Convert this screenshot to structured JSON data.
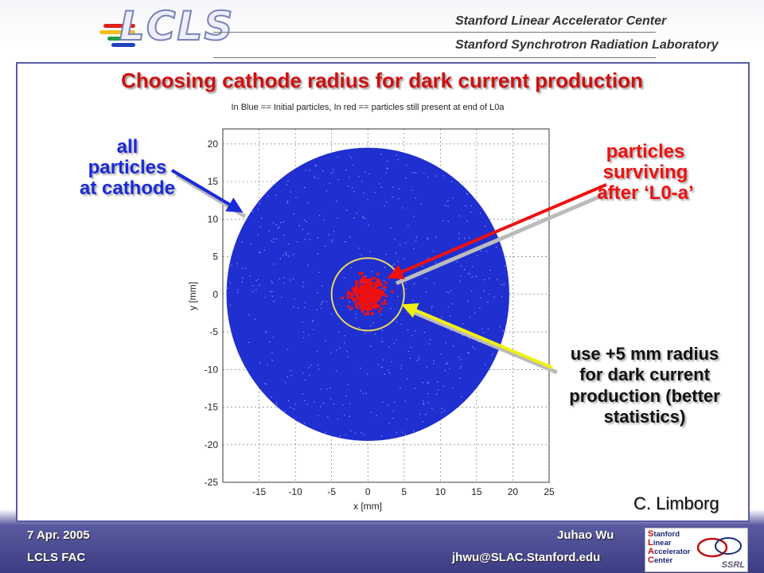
{
  "header": {
    "logo_text": "LCLS",
    "org_line1": "Stanford Linear Accelerator Center",
    "org_line2": "Stanford Synchrotron Radiation Laboratory"
  },
  "slide": {
    "title": "Choosing cathode radius for dark current production",
    "credit": "C. Limborg"
  },
  "callouts": {
    "all_particles": [
      "all",
      "particles",
      "at cathode"
    ],
    "surviving": [
      "particles",
      "surviving",
      "after ‘L0-a’"
    ],
    "radius": [
      "use +5 mm radius",
      "for dark current",
      "production (better",
      "statistics)"
    ]
  },
  "footer": {
    "date": "7 Apr. 2005",
    "event": "LCLS FAC",
    "author": "Juhao Wu",
    "email": "jhwu@SLAC.Stanford.edu"
  },
  "slac_logo": {
    "line1_first": "S",
    "line1_rest": "tanford",
    "line2_first": "L",
    "line2_rest": "inear",
    "line3_first": "A",
    "line3_rest": "ccelerator",
    "line4_first": "C",
    "line4_rest": "enter",
    "ssrl": "SSRL"
  },
  "colors": {
    "title": "#d01010",
    "blue_particles": "#1f2fd0",
    "red_particles": "#ee1010",
    "circle": "#e8d85a",
    "arrow_blue": "#1a2ad8",
    "arrow_red": "#ee1111",
    "arrow_yellow": "#f0f010"
  },
  "chart_data": {
    "type": "scatter",
    "title": "In Blue == Initial particles, In red == particles still present at end of L0a",
    "xlabel": "x [mm]",
    "ylabel": "y [mm]",
    "xlim": [
      -20,
      25
    ],
    "ylim": [
      -25,
      22
    ],
    "xticks": [
      -15,
      -10,
      -5,
      0,
      5,
      10,
      15,
      20,
      25
    ],
    "yticks": [
      20,
      15,
      10,
      5,
      0,
      -5,
      -10,
      -15,
      -20,
      -25
    ],
    "grid": true,
    "series": [
      {
        "color": "#1f2fd0",
        "distribution": "uniform disk",
        "center": [
          0,
          0
        ],
        "radius_mm": 19.5
      },
      {
        "color": "#ee1010",
        "distribution": "core cluster",
        "center": [
          0,
          0
        ],
        "radius_mm": 4.5
      }
    ],
    "reference_circle": {
      "center": [
        0,
        0
      ],
      "radius_mm": 5,
      "color": "#e8d85a"
    }
  }
}
